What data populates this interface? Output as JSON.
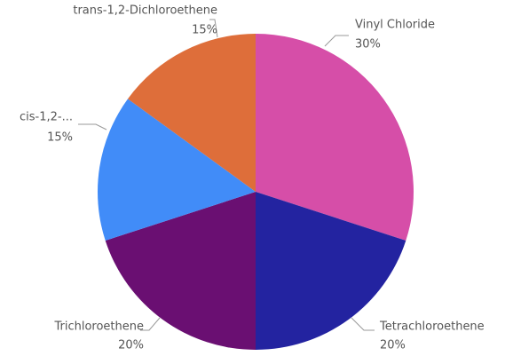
{
  "chart_data": {
    "type": "pie",
    "categories": [
      "Vinyl Chloride",
      "Tetrachloroethene",
      "Trichloroethene",
      "cis-1,2-...",
      "trans-1,2-Dichloroethene"
    ],
    "values": [
      30,
      20,
      20,
      15,
      15
    ],
    "value_labels": [
      "30%",
      "20%",
      "20%",
      "15%",
      "15%"
    ],
    "colors": [
      "#d64ea8",
      "#2323a0",
      "#6a0f72",
      "#418cf8",
      "#de6e3a"
    ]
  }
}
